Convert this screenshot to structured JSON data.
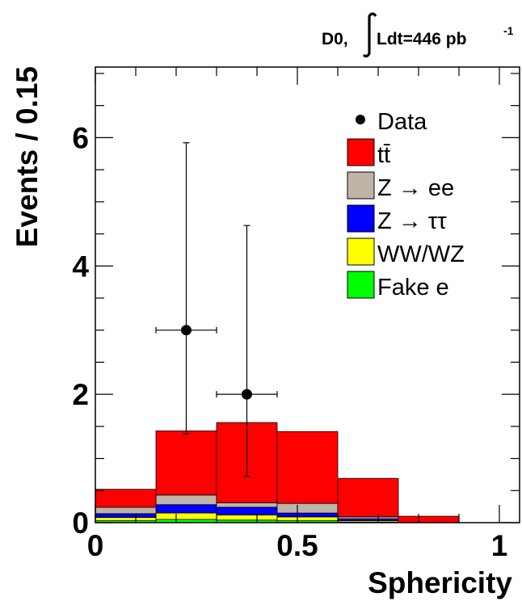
{
  "chart_data": {
    "type": "bar",
    "annotation": {
      "prefix": "D0,",
      "integral": "Ldt=446 pb",
      "exponent": "-1"
    },
    "xlabel": "Sphericity",
    "ylabel": "Events / 0.15",
    "xlim": [
      0,
      1.05
    ],
    "ylim": [
      0,
      7.1
    ],
    "x_ticks": [
      0,
      0.5,
      1
    ],
    "x_tick_labels": [
      "0",
      "0.5",
      "1"
    ],
    "y_ticks": [
      0,
      2,
      4,
      6
    ],
    "y_tick_labels": [
      "0",
      "2",
      "4",
      "6"
    ],
    "bin_edges": [
      0,
      0.15,
      0.3,
      0.45,
      0.6,
      0.75,
      0.9,
      1.05
    ],
    "stack_order": [
      "fake_e",
      "ww_wz",
      "z_tautau",
      "z_ee",
      "ttbar"
    ],
    "series": [
      {
        "key": "ttbar",
        "name": "tt̄",
        "color": "#ff0000",
        "values": [
          0.28,
          1.0,
          1.25,
          1.12,
          0.6,
          0.1,
          0.0
        ]
      },
      {
        "key": "z_ee",
        "name": "Z → ee",
        "color": "#c0b4a8",
        "values": [
          0.1,
          0.15,
          0.07,
          0.15,
          0.03,
          0.0,
          0.0
        ]
      },
      {
        "key": "z_tautau",
        "name": "Z → ττ",
        "color": "#0000ff",
        "values": [
          0.06,
          0.13,
          0.12,
          0.06,
          0.03,
          0.0,
          0.0
        ]
      },
      {
        "key": "ww_wz",
        "name": "WW/WZ",
        "color": "#ffff00",
        "values": [
          0.05,
          0.1,
          0.08,
          0.06,
          0.02,
          0.0,
          0.0
        ]
      },
      {
        "key": "fake_e",
        "name": "Fake e",
        "color": "#00ff00",
        "values": [
          0.03,
          0.05,
          0.04,
          0.03,
          0.01,
          0.0,
          0.0
        ]
      }
    ],
    "data_points": [
      {
        "x": 0.225,
        "y": 3,
        "xerr": 0.075,
        "yerr_low": 1.62,
        "yerr_high": 2.92
      },
      {
        "x": 0.375,
        "y": 2,
        "xerr": 0.075,
        "yerr_low": 1.28,
        "yerr_high": 2.63
      }
    ],
    "legend": {
      "placement": "top-right",
      "entries": [
        {
          "label": "Data",
          "marker": "point",
          "color": "#000000"
        },
        {
          "label": "tt̄",
          "marker": "box",
          "color": "#ff0000"
        },
        {
          "label": "Z → ee",
          "marker": "box",
          "color": "#c0b4a8"
        },
        {
          "label": "Z → ττ",
          "marker": "box",
          "color": "#0000ff"
        },
        {
          "label": "WW/WZ",
          "marker": "box",
          "color": "#ffff00"
        },
        {
          "label": "Fake e",
          "marker": "box",
          "color": "#00ff00"
        }
      ]
    }
  }
}
